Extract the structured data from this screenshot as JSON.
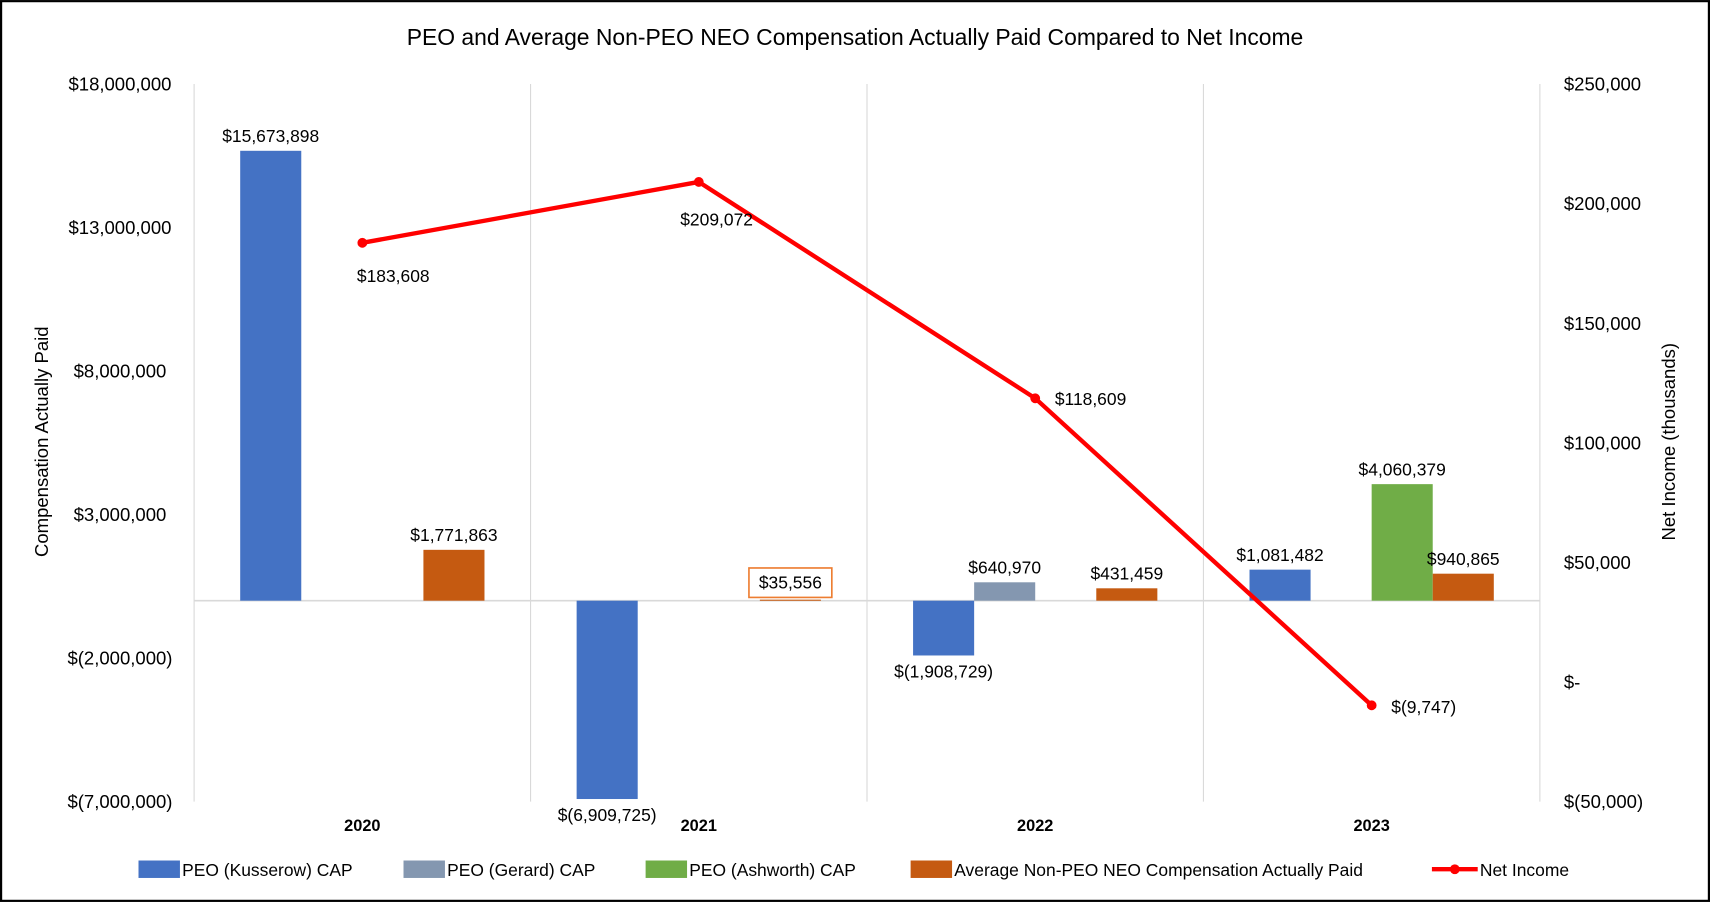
{
  "chart_data": {
    "type": "bar+line",
    "title": "PEO and Average Non-PEO NEO Compensation Actually Paid Compared to Net Income",
    "ylabel": "Compensation Actually Paid",
    "y2label": "Net Income (thousands)",
    "categories": [
      "2020",
      "2021",
      "2022",
      "2023"
    ],
    "ylim": [
      -7000000,
      18000000
    ],
    "yticks": [
      18000000,
      13000000,
      8000000,
      3000000,
      -2000000,
      -7000000
    ],
    "ytick_labels": [
      "$18,000,000",
      "$13,000,000",
      "$8,000,000",
      "$3,000,000",
      "$(2,000,000)",
      "$(7,000,000)"
    ],
    "y2lim": [
      -50000,
      250000
    ],
    "y2ticks": [
      250000,
      200000,
      150000,
      100000,
      50000,
      0,
      -50000
    ],
    "y2tick_labels": [
      "$250,000",
      "$200,000",
      "$150,000",
      "$100,000",
      "$50,000",
      "$-",
      "$(50,000)"
    ],
    "grid": "vertical category separators",
    "legend_position": "bottom",
    "series": [
      {
        "name": "PEO (Kusserow) CAP",
        "type": "bar",
        "color": "#4472C4",
        "values": [
          15673898,
          -6909725,
          -1908729,
          1081482
        ],
        "labels": [
          "$15,673,898",
          "$(6,909,725)",
          "$(1,908,729)",
          "$1,081,482"
        ]
      },
      {
        "name": "PEO (Gerard) CAP",
        "type": "bar",
        "color": "#8497B0",
        "values": [
          null,
          null,
          640970,
          null
        ],
        "labels": [
          null,
          null,
          "$640,970",
          null
        ]
      },
      {
        "name": "PEO (Ashworth) CAP",
        "type": "bar",
        "color": "#70AD47",
        "values": [
          null,
          null,
          null,
          4060379
        ],
        "labels": [
          null,
          null,
          null,
          "$4,060,379"
        ]
      },
      {
        "name": "Average Non-PEO NEO Compensation Actually Paid",
        "type": "bar",
        "color": "#C55A11",
        "values": [
          1771863,
          35556,
          431459,
          940865
        ],
        "labels": [
          "$1,771,863",
          "$35,556",
          "$431,459",
          "$940,865"
        ]
      },
      {
        "name": "Net Income",
        "type": "line",
        "axis": "right",
        "color": "#FF0000",
        "values": [
          183608,
          209072,
          118609,
          -9747
        ],
        "labels": [
          "$183,608",
          "$209,072",
          "$118,609",
          "$(9,747)"
        ]
      }
    ]
  }
}
